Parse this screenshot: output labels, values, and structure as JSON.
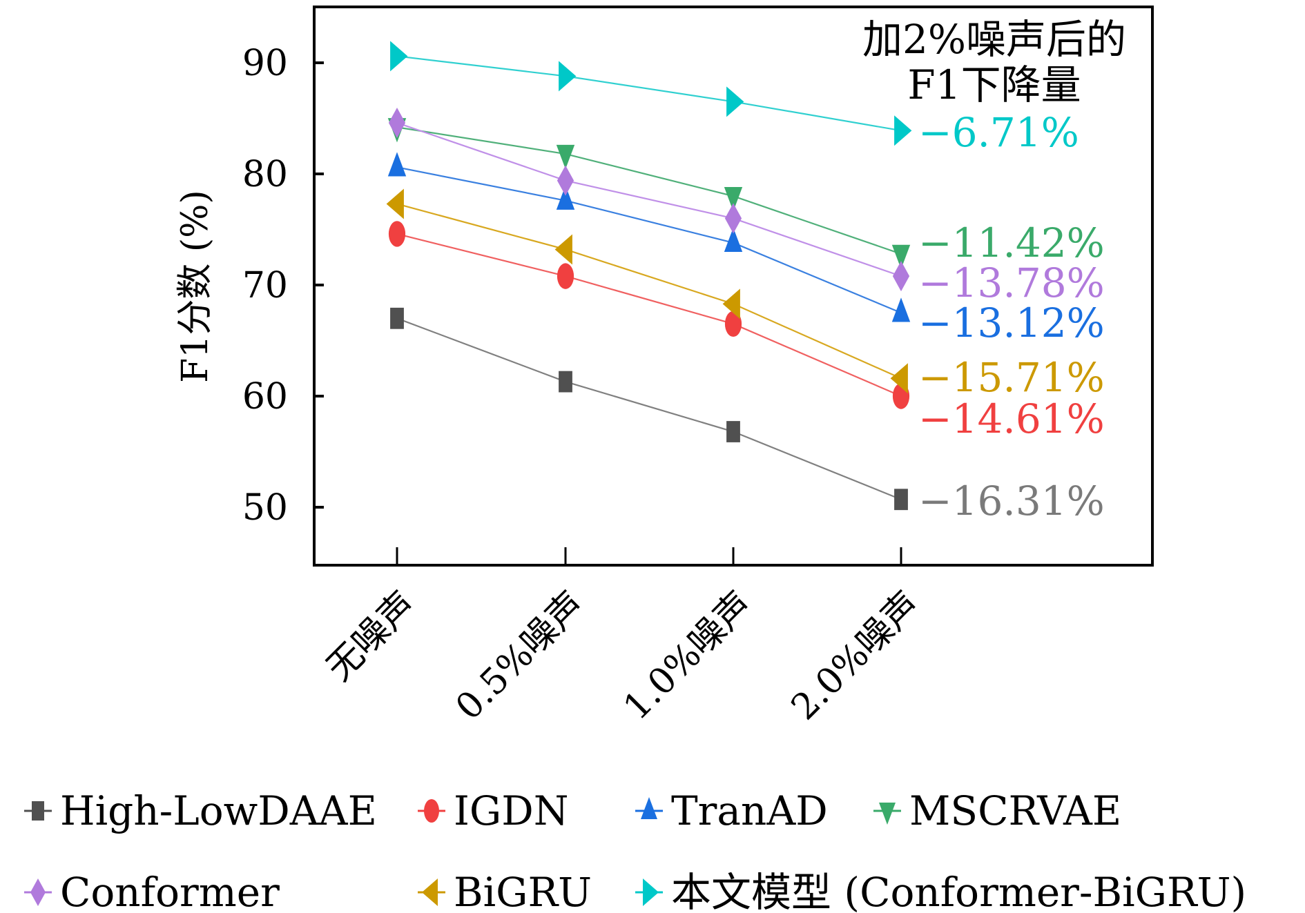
{
  "chart_data": {
    "type": "line",
    "title": "",
    "xlabel": "",
    "ylabel": "F1分数 (%)",
    "categories": [
      "无噪声",
      "0.5%噪声",
      "1.0%噪声",
      "2.0%噪声"
    ],
    "ylim": [
      44.8,
      95.2
    ],
    "yticks": [
      50,
      60,
      70,
      80,
      90
    ],
    "ytick_labels": [
      "50",
      "60",
      "70",
      "80",
      "90"
    ],
    "grid": false,
    "legend_position": "bottom",
    "annotation_title": [
      "加2%噪声后的",
      "F1下降量"
    ],
    "series": [
      {
        "name": "High-LowDAAE",
        "marker": "square",
        "color": "#505050",
        "line_color": "#808080",
        "label_color": "#7a7a7a",
        "values": [
          67.0,
          61.3,
          56.8,
          50.7
        ],
        "drop_label": "−16.31%"
      },
      {
        "name": "IGDN",
        "marker": "ellipse",
        "color": "#f04040",
        "line_color": "#f06060",
        "label_color": "#f04040",
        "values": [
          74.6,
          70.8,
          66.5,
          60.0
        ],
        "drop_label": "−14.61%"
      },
      {
        "name": "TranAD",
        "marker": "triangle-up",
        "color": "#1a6fe0",
        "line_color": "#3a80e0",
        "label_color": "#1a6fe0",
        "values": [
          80.6,
          77.6,
          73.8,
          67.5
        ],
        "drop_label": "−13.12%"
      },
      {
        "name": "MSCRVAE",
        "marker": "triangle-down",
        "color": "#3aaa6a",
        "line_color": "#50b07a",
        "label_color": "#3aaa6a",
        "values": [
          84.2,
          81.8,
          78.0,
          72.8
        ],
        "drop_label": "−11.42%"
      },
      {
        "name": "Conformer",
        "marker": "diamond",
        "color": "#b07adc",
        "line_color": "#c090e8",
        "label_color": "#b07adc",
        "values": [
          84.6,
          79.4,
          76.0,
          70.8
        ],
        "drop_label": "−13.78%"
      },
      {
        "name": "BiGRU",
        "marker": "triangle-left",
        "color": "#cc9900",
        "line_color": "#d8a820",
        "label_color": "#cc9900",
        "values": [
          77.3,
          73.2,
          68.3,
          61.6
        ],
        "drop_label": "−15.71%"
      },
      {
        "name": "本文模型 (Conformer-BiGRU)",
        "marker": "triangle-right",
        "color": "#00c8c8",
        "line_color": "#30d0d0",
        "label_color": "#00c8c8",
        "values": [
          90.6,
          88.8,
          86.5,
          83.9
        ],
        "drop_label": "−6.71%"
      }
    ]
  }
}
